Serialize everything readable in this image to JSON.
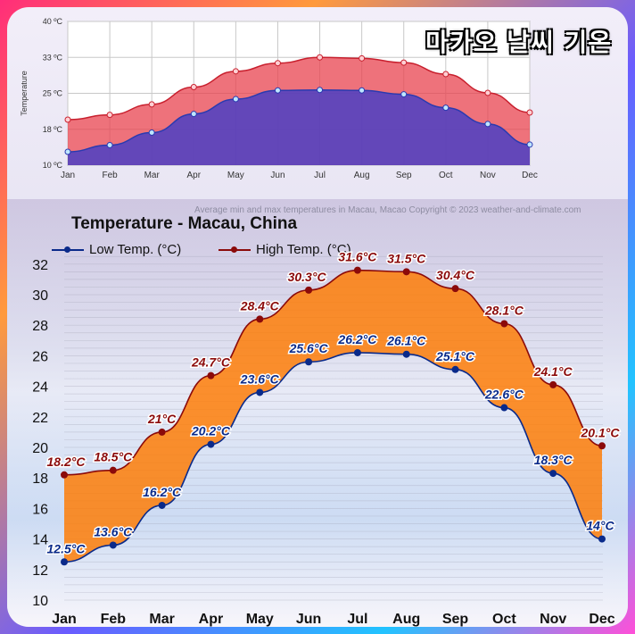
{
  "overlay_title": "마카오 날씨 기온",
  "watermark": "Average min and max temperatures in Macau, Macao   Copyright © 2023  weather-and-climate.com",
  "chart_data": [
    {
      "type": "area",
      "title": "",
      "xlabel": "",
      "ylabel": "Temperature",
      "categories": [
        "Jan",
        "Feb",
        "Mar",
        "Apr",
        "May",
        "Jun",
        "Jul",
        "Aug",
        "Sep",
        "Oct",
        "Nov",
        "Dec"
      ],
      "yticks": [
        "10 ºC",
        "18 ºC",
        "25 ºC",
        "33 ºC",
        "40 ºC"
      ],
      "ylim": [
        10,
        40
      ],
      "grid": true,
      "series": [
        {
          "values": [
            19.5,
            20.5,
            22.7,
            26.3,
            29.6,
            31.3,
            32.5,
            32.3,
            31.4,
            29.0,
            25.1,
            21.0
          ],
          "color": "#e8434f"
        },
        {
          "values": [
            12.8,
            14.2,
            16.8,
            20.7,
            23.8,
            25.6,
            25.7,
            25.6,
            24.8,
            22.0,
            18.6,
            14.3
          ],
          "color": "#4a3fc4"
        }
      ]
    },
    {
      "type": "area",
      "title": "Temperature - Macau, China",
      "xlabel": "",
      "ylabel": "",
      "categories": [
        "Jan",
        "Feb",
        "Mar",
        "Apr",
        "May",
        "Jun",
        "Jul",
        "Aug",
        "Sep",
        "Oct",
        "Nov",
        "Dec"
      ],
      "yticks": [
        10,
        12,
        14,
        16,
        18,
        20,
        22,
        24,
        26,
        28,
        30,
        32
      ],
      "ylim": [
        10,
        32.5
      ],
      "grid": true,
      "legend": "top-left",
      "series": [
        {
          "name": "Low Temp. (°C)",
          "values": [
            12.5,
            13.6,
            16.2,
            20.2,
            23.6,
            25.6,
            26.2,
            26.1,
            25.1,
            22.6,
            18.3,
            14.0
          ],
          "labels": [
            "12.5°C",
            "13.6°C",
            "16.2°C",
            "20.2°C",
            "23.6°C",
            "25.6°C",
            "26.2°C",
            "26.1°C",
            "25.1°C",
            "22.6°C",
            "18.3°C",
            "14°C"
          ],
          "color": "#0a2a8a"
        },
        {
          "name": "High Temp. (°C)",
          "values": [
            18.2,
            18.5,
            21.0,
            24.7,
            28.4,
            30.3,
            31.6,
            31.5,
            30.4,
            28.1,
            24.1,
            20.1
          ],
          "labels": [
            "18.2°C",
            "18.5°C",
            "21°C",
            "24.7°C",
            "28.4°C",
            "30.3°C",
            "31.6°C",
            "31.5°C",
            "30.4°C",
            "28.1°C",
            "24.1°C",
            "20.1°C"
          ],
          "color": "#8b0a0a"
        }
      ]
    }
  ]
}
